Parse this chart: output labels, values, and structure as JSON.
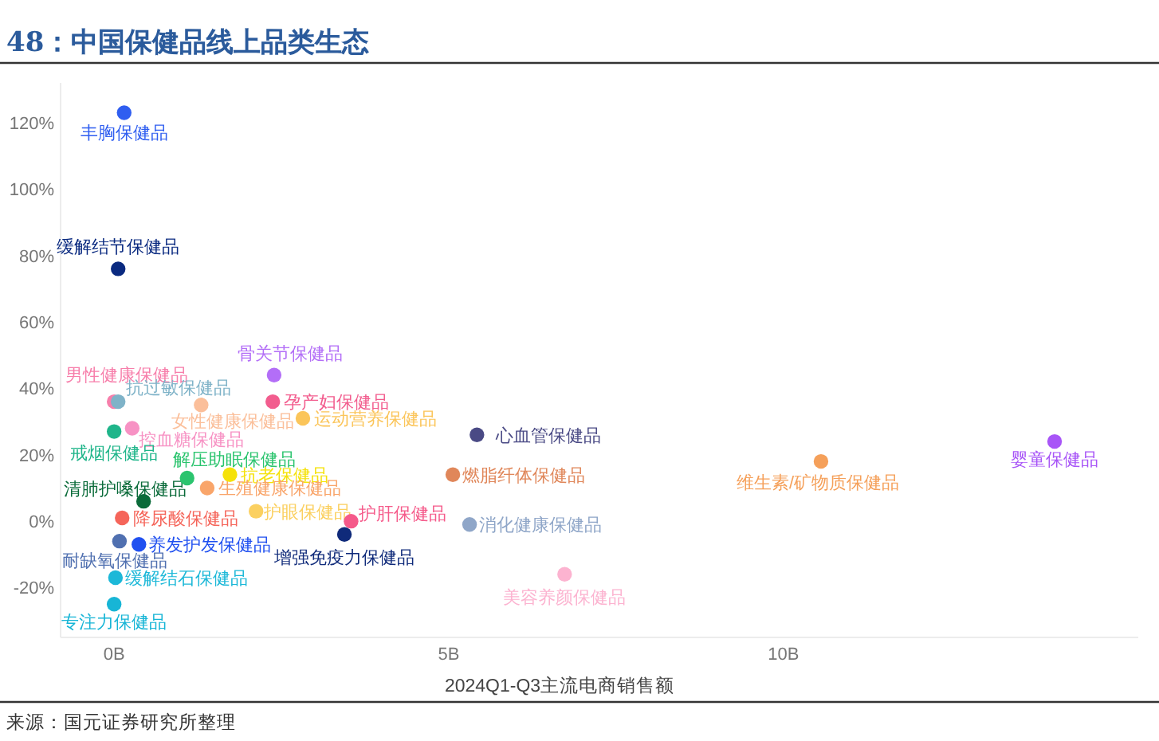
{
  "chart_data": {
    "type": "scatter",
    "title": "48：中国保健品线上品类生态",
    "xlabel": "2024Q1-Q3主流电商销售额",
    "annotations": [
      "来源：国元证券研究所整理"
    ],
    "xlim": [
      -0.8,
      15.3
    ],
    "ylim": [
      -35,
      132
    ],
    "xticks": [
      {
        "value": 0,
        "label": "0B"
      },
      {
        "value": 5,
        "label": "5B"
      },
      {
        "value": 10,
        "label": "10B"
      }
    ],
    "yticks": [
      {
        "value": -20,
        "label": "-20%"
      },
      {
        "value": 0,
        "label": "0%"
      },
      {
        "value": 20,
        "label": "20%"
      },
      {
        "value": 40,
        "label": "40%"
      },
      {
        "value": 60,
        "label": "60%"
      },
      {
        "value": 80,
        "label": "80%"
      },
      {
        "value": 100,
        "label": "100%"
      },
      {
        "value": 120,
        "label": "120%"
      }
    ],
    "marker": "circle",
    "series": [
      {
        "name": "丰胸保健品",
        "color": "#2f5ef0",
        "x": [
          0.15
        ],
        "values": [
          123
        ]
      },
      {
        "name": "缓解结节保健品",
        "color": "#0a2a80",
        "x": [
          0.06
        ],
        "values": [
          76
        ]
      },
      {
        "name": "骨关节保健品",
        "color": "#b36ef7",
        "x": [
          2.39
        ],
        "values": [
          44
        ]
      },
      {
        "name": "男性健康保健品",
        "color": "#f77fab",
        "x": [
          0.0
        ],
        "values": [
          36
        ]
      },
      {
        "name": "抗过敏保健品",
        "color": "#7fb3c8",
        "x": [
          0.06
        ],
        "values": [
          36
        ]
      },
      {
        "name": "女性健康保健品",
        "color": "#fbbf9a",
        "x": [
          1.3
        ],
        "values": [
          35
        ]
      },
      {
        "name": "孕产妇保健品",
        "color": "#f25d8e",
        "x": [
          2.37
        ],
        "values": [
          36
        ]
      },
      {
        "name": "运动营养保健品",
        "color": "#fbc55a",
        "x": [
          2.82
        ],
        "values": [
          31
        ]
      },
      {
        "name": "心血管保健品",
        "color": "#4a4a85",
        "x": [
          5.42
        ],
        "values": [
          26
        ]
      },
      {
        "name": "控血糖保健品",
        "color": "#f792c4",
        "x": [
          0.27
        ],
        "values": [
          28
        ]
      },
      {
        "name": "戒烟保健品",
        "color": "#1fb58a",
        "x": [
          0.0
        ],
        "values": [
          27
        ]
      },
      {
        "name": "解压助眠保健品",
        "color": "#2bc46e",
        "x": [
          1.09
        ],
        "values": [
          13
        ]
      },
      {
        "name": "抗老保健品",
        "color": "#f5e20a",
        "x": [
          1.73
        ],
        "values": [
          14
        ]
      },
      {
        "name": "燃脂纤体保健品",
        "color": "#e0875a",
        "x": [
          5.06
        ],
        "values": [
          14
        ]
      },
      {
        "name": "生殖健康保健品",
        "color": "#f9a56a",
        "x": [
          1.39
        ],
        "values": [
          10
        ]
      },
      {
        "name": "清肺护嗓保健品",
        "color": "#0b6b3a",
        "x": [
          0.44
        ],
        "values": [
          6
        ]
      },
      {
        "name": "降尿酸保健品",
        "color": "#f5655a",
        "x": [
          0.12
        ],
        "values": [
          1
        ]
      },
      {
        "name": "护眼保健品",
        "color": "#fbd060",
        "x": [
          2.12
        ],
        "values": [
          3
        ]
      },
      {
        "name": "护肝保健品",
        "color": "#f55a8a",
        "x": [
          3.54
        ],
        "values": [
          0
        ]
      },
      {
        "name": "消化健康保健品",
        "color": "#8fa6c8",
        "x": [
          5.31
        ],
        "values": [
          -1
        ]
      },
      {
        "name": "增强免疫力保健品",
        "color": "#0f2a7a",
        "x": [
          3.44
        ],
        "values": [
          -4
        ]
      },
      {
        "name": "耐缺氧保健品",
        "color": "#5070b0",
        "x": [
          0.08
        ],
        "values": [
          -6
        ]
      },
      {
        "name": "养发护发保健品",
        "color": "#2050f0",
        "x": [
          0.37
        ],
        "values": [
          -7
        ]
      },
      {
        "name": "缓解结石保健品",
        "color": "#1cb8d8",
        "x": [
          0.02
        ],
        "values": [
          -17
        ]
      },
      {
        "name": "美容养颜保健品",
        "color": "#fcb3d0",
        "x": [
          6.73
        ],
        "values": [
          -16
        ]
      },
      {
        "name": "专注力保健品",
        "color": "#17b5d6",
        "x": [
          0.0
        ],
        "values": [
          -25
        ]
      },
      {
        "name": "维生素/矿物质保健品",
        "color": "#f5a05a",
        "x": [
          10.56
        ],
        "values": [
          18
        ]
      },
      {
        "name": "婴童保健品",
        "color": "#a855f7",
        "x": [
          14.05
        ],
        "values": [
          24
        ]
      }
    ]
  }
}
